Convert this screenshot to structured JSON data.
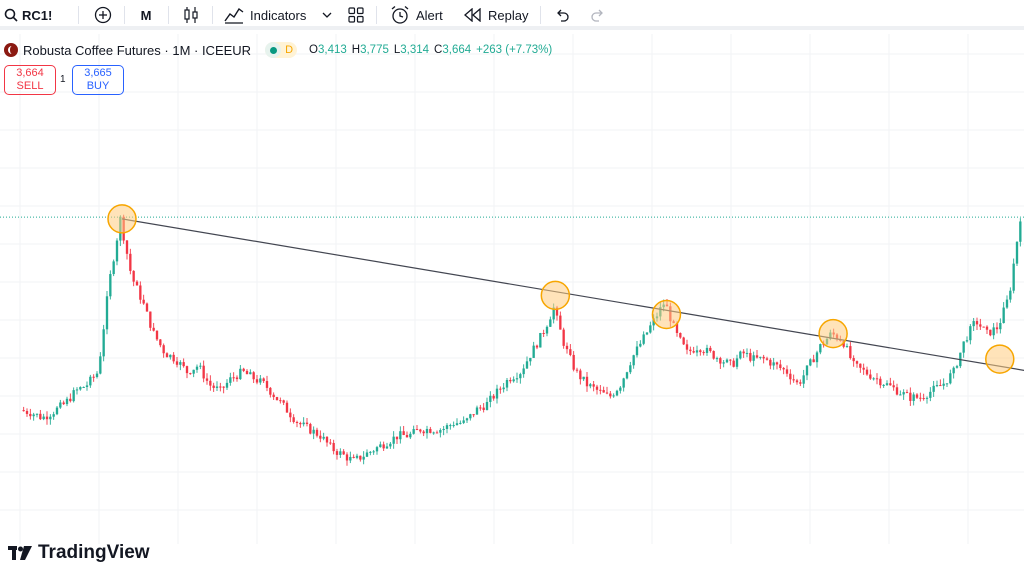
{
  "toolbar": {
    "symbol": "RC1!",
    "interval": "M",
    "indicators_label": "Indicators",
    "alert_label": "Alert",
    "replay_label": "Replay"
  },
  "legend": {
    "title": "Robusta Coffee Futures · 1M · ICEEUR",
    "badge_letter": "D",
    "open_key": "O",
    "open": "3,413",
    "high_key": "H",
    "high": "3,775",
    "low_key": "L",
    "low": "3,314",
    "close_key": "C",
    "close": "3,664",
    "change": "+263 (+7.73%)"
  },
  "trade": {
    "sell_price": "3,664",
    "sell_label": "SELL",
    "spread": "1",
    "buy_price": "3,665",
    "buy_label": "BUY"
  },
  "branding": {
    "logo_text": "TradingView"
  },
  "colors": {
    "up": "#22ab94",
    "down": "#f23645",
    "trendline": "#434651",
    "highlight_fill": "#ffcc80",
    "highlight_stroke": "#f7a600",
    "price_line": "#22ab94"
  },
  "chart_data": {
    "type": "candlestick",
    "interval": "1M",
    "grid": true,
    "close_profile": [
      2150,
      2130,
      2090,
      2140,
      2200,
      2300,
      2350,
      2450,
      3150,
      3650,
      3200,
      3000,
      2750,
      2600,
      2550,
      2450,
      2500,
      2350,
      2300,
      2400,
      2450,
      2400,
      2350,
      2250,
      2150,
      2050,
      2000,
      1950,
      1850,
      1800,
      1750,
      1800,
      1850,
      1900,
      1950,
      1950,
      2000,
      2000,
      2000,
      2050,
      2050,
      2150,
      2200,
      2300,
      2400,
      2450,
      2600,
      2750,
      2950,
      2650,
      2450,
      2350,
      2300,
      2250,
      2350,
      2550,
      2700,
      2850,
      3000,
      2750,
      2600,
      2650,
      2600,
      2550,
      2500,
      2600,
      2550,
      2550,
      2500,
      2450,
      2350,
      2500,
      2650,
      2750,
      2700,
      2500,
      2450,
      2400,
      2350,
      2300,
      2250,
      2250,
      2300,
      2350,
      2450,
      2700,
      2850,
      2750,
      2800,
      3050,
      3664
    ],
    "highlighted_touches": [
      {
        "index": 9,
        "price": 3650
      },
      {
        "index": 48,
        "price": 3050
      },
      {
        "index": 58,
        "price": 2900
      },
      {
        "index": 73,
        "price": 2750
      },
      {
        "index": 88,
        "price": 2550
      }
    ],
    "trendline": {
      "from": {
        "index": 9,
        "price": 3650
      },
      "to": {
        "index": 91,
        "price": 2450
      }
    },
    "last_price": 3664
  }
}
